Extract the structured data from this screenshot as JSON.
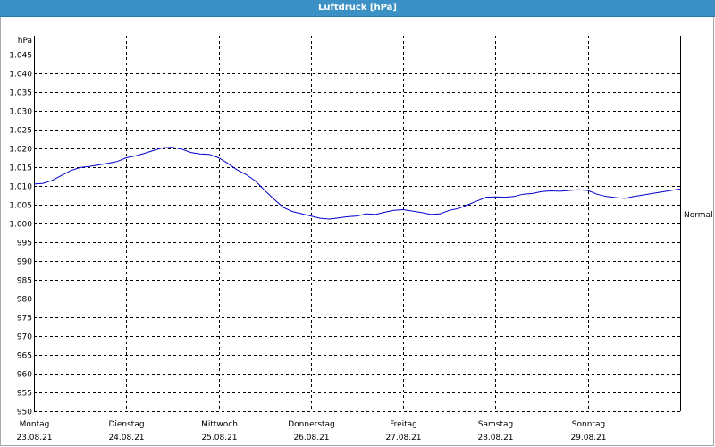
{
  "window": {
    "title": "Luftdruck [hPa]"
  },
  "colors": {
    "line": "#0000cc",
    "title_bar": "#3b90c5",
    "grid": "#000000"
  },
  "chart_data": {
    "type": "line",
    "title": "Luftdruck [hPa]",
    "xlabel": "",
    "ylabel": "hPa",
    "ylim": [
      950,
      1050
    ],
    "grid": true,
    "y_ticks": [
      "1.045",
      "1.040",
      "1.035",
      "1.030",
      "1.025",
      "1.020",
      "1.015",
      "1.010",
      "1.005",
      "1.000",
      "995",
      "990",
      "985",
      "980",
      "975",
      "970",
      "965",
      "960",
      "955",
      "950"
    ],
    "y_tick_values": [
      1045,
      1040,
      1035,
      1030,
      1025,
      1020,
      1015,
      1010,
      1005,
      1000,
      995,
      990,
      985,
      980,
      975,
      970,
      965,
      960,
      955,
      950
    ],
    "days": [
      {
        "weekday": "Montag",
        "date": "23.08.21"
      },
      {
        "weekday": "Dienstag",
        "date": "24.08.21"
      },
      {
        "weekday": "Mittwoch",
        "date": "25.08.21"
      },
      {
        "weekday": "Donnerstag",
        "date": "26.08.21"
      },
      {
        "weekday": "Freitag",
        "date": "27.08.21"
      },
      {
        "weekday": "Samstag",
        "date": "28.08.21"
      },
      {
        "weekday": "Sonntag",
        "date": "29.08.21"
      }
    ],
    "reference_line": {
      "label": "Normal",
      "value": 1002.5
    },
    "x_range_days": [
      0,
      7
    ],
    "series": [
      {
        "x": [
          0.0,
          0.1,
          0.2,
          0.3,
          0.4,
          0.5,
          0.6,
          0.7,
          0.8,
          0.9,
          1.0,
          1.1,
          1.2,
          1.3,
          1.4,
          1.5,
          1.6,
          1.7,
          1.8,
          1.9,
          2.0,
          2.1,
          2.2,
          2.3,
          2.4,
          2.5,
          2.6,
          2.7,
          2.8,
          2.9,
          3.0,
          3.1,
          3.2,
          3.3,
          3.4,
          3.5,
          3.6,
          3.7,
          3.8,
          3.9,
          4.0,
          4.1,
          4.2,
          4.3,
          4.4,
          4.5,
          4.6,
          4.7,
          4.8,
          4.9,
          5.0,
          5.1,
          5.2,
          5.3,
          5.4,
          5.5,
          5.6,
          5.7,
          5.8,
          5.9,
          6.0,
          6.1,
          6.2,
          6.3,
          6.4,
          6.5,
          6.6,
          6.7,
          6.8,
          6.9,
          7.0
        ],
        "values": [
          1010.5,
          1010.7,
          1011.5,
          1012.8,
          1014.1,
          1014.9,
          1015.2,
          1015.6,
          1016.0,
          1016.5,
          1017.5,
          1018.0,
          1018.7,
          1019.5,
          1020.2,
          1020.3,
          1019.8,
          1018.9,
          1018.5,
          1018.4,
          1017.5,
          1016.0,
          1014.3,
          1013.0,
          1011.3,
          1008.8,
          1006.5,
          1004.3,
          1003.2,
          1002.6,
          1002.0,
          1001.4,
          1001.2,
          1001.5,
          1001.8,
          1002.0,
          1002.6,
          1002.4,
          1003.0,
          1003.5,
          1003.7,
          1003.3,
          1002.9,
          1002.4,
          1002.6,
          1003.5,
          1004.0,
          1005.0,
          1006.0,
          1007.0,
          1007.1,
          1007.0,
          1007.2,
          1007.8,
          1008.0,
          1008.5,
          1008.7,
          1008.6,
          1008.8,
          1009.0,
          1008.8,
          1007.8,
          1007.2,
          1006.9,
          1006.7,
          1007.2,
          1007.6,
          1008.0,
          1008.4,
          1008.8,
          1009.2
        ]
      }
    ]
  }
}
